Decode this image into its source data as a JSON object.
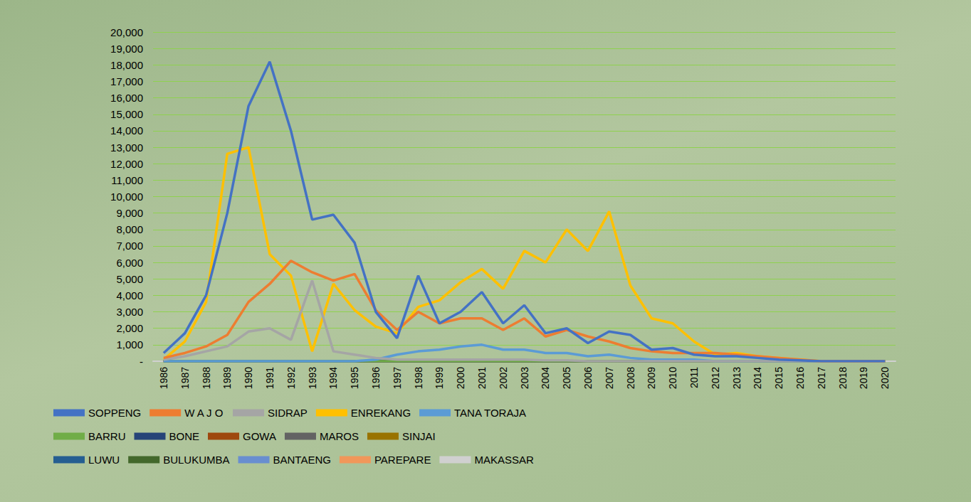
{
  "chart_data": {
    "type": "line",
    "marker": "none",
    "grid": true,
    "legend": "bottom",
    "categories": [
      "1986",
      "1987",
      "1988",
      "1989",
      "1990",
      "1991",
      "1992",
      "1993",
      "1994",
      "1995",
      "1996",
      "1997",
      "1998",
      "1999",
      "2000",
      "2001",
      "2002",
      "2003",
      "2004",
      "2005",
      "2006",
      "2007",
      "2008",
      "2009",
      "2010",
      "2011",
      "2012",
      "2013",
      "2014",
      "2015",
      "2016",
      "2017",
      "2018",
      "2019",
      "2020"
    ],
    "ylim": [
      0,
      20000
    ],
    "yticks": [
      {
        "value": 0,
        "label": "-"
      },
      {
        "value": 1000,
        "label": "1,000"
      },
      {
        "value": 2000,
        "label": "2,000"
      },
      {
        "value": 3000,
        "label": "3,000"
      },
      {
        "value": 4000,
        "label": "4,000"
      },
      {
        "value": 5000,
        "label": "5,000"
      },
      {
        "value": 6000,
        "label": "6,000"
      },
      {
        "value": 7000,
        "label": "7,000"
      },
      {
        "value": 8000,
        "label": "8,000"
      },
      {
        "value": 9000,
        "label": "9,000"
      },
      {
        "value": 10000,
        "label": "10,000"
      },
      {
        "value": 11000,
        "label": "11,000"
      },
      {
        "value": 12000,
        "label": "12,000"
      },
      {
        "value": 13000,
        "label": "13,000"
      },
      {
        "value": 14000,
        "label": "14,000"
      },
      {
        "value": 15000,
        "label": "15,000"
      },
      {
        "value": 16000,
        "label": "16,000"
      },
      {
        "value": 17000,
        "label": "17,000"
      },
      {
        "value": 18000,
        "label": "18,000"
      },
      {
        "value": 19000,
        "label": "19,000"
      },
      {
        "value": 20000,
        "label": "20,000"
      }
    ],
    "series": [
      {
        "name": "SOPPENG",
        "color": "#4472c4",
        "values": [
          500,
          1700,
          4000,
          9000,
          15500,
          18200,
          14000,
          8600,
          8900,
          7200,
          3000,
          1400,
          5200,
          2300,
          3000,
          4200,
          2300,
          3400,
          1700,
          2000,
          1100,
          1800,
          1600,
          700,
          800,
          400,
          300,
          300,
          200,
          100,
          50,
          0,
          0,
          0,
          0
        ]
      },
      {
        "name": "W A J O",
        "color": "#ed7d31",
        "values": [
          200,
          500,
          900,
          1600,
          3600,
          4700,
          6100,
          5400,
          4900,
          5300,
          3100,
          1900,
          3000,
          2300,
          2600,
          2600,
          1900,
          2600,
          1500,
          1900,
          1500,
          1200,
          800,
          600,
          500,
          500,
          500,
          400,
          300,
          200,
          100,
          0,
          0,
          0,
          0
        ]
      },
      {
        "name": "SIDRAP",
        "color": "#a5a5a5",
        "values": [
          100,
          300,
          600,
          900,
          1800,
          2000,
          1300,
          4900,
          600,
          400,
          200,
          100,
          100,
          100,
          100,
          100,
          100,
          100,
          50,
          50,
          0,
          0,
          0,
          0,
          0,
          0,
          0,
          0,
          0,
          0,
          0,
          0,
          0,
          0,
          0
        ]
      },
      {
        "name": "ENREKANG",
        "color": "#ffc000",
        "values": [
          100,
          1200,
          3600,
          12600,
          13000,
          6500,
          5200,
          600,
          4700,
          3100,
          2100,
          1700,
          3300,
          3700,
          4800,
          5600,
          4400,
          6700,
          6000,
          8000,
          6700,
          9100,
          4600,
          2600,
          2300,
          1200,
          400,
          500,
          300,
          200,
          100,
          0,
          0,
          0,
          0
        ]
      },
      {
        "name": "TANA TORAJA",
        "color": "#5b9bd5",
        "values": [
          0,
          0,
          0,
          0,
          0,
          0,
          0,
          0,
          0,
          0,
          100,
          400,
          600,
          700,
          900,
          1000,
          700,
          700,
          500,
          500,
          300,
          400,
          200,
          100,
          100,
          100,
          0,
          0,
          0,
          0,
          0,
          0,
          0,
          0,
          0
        ]
      },
      {
        "name": "BARRU",
        "color": "#70ad47",
        "values": [
          0,
          0,
          0,
          0,
          0,
          0,
          0,
          0,
          0,
          0,
          0,
          0,
          0,
          0,
          0,
          0,
          0,
          0,
          0,
          0,
          0,
          0,
          0,
          0,
          0,
          0,
          0,
          0,
          0,
          0,
          0,
          0,
          0,
          0,
          0
        ]
      },
      {
        "name": "BONE",
        "color": "#264478",
        "values": [
          0,
          0,
          0,
          0,
          0,
          0,
          0,
          0,
          0,
          0,
          0,
          0,
          0,
          0,
          0,
          0,
          0,
          0,
          0,
          0,
          0,
          0,
          0,
          0,
          0,
          0,
          0,
          0,
          0,
          0,
          0,
          0,
          0,
          0,
          0
        ]
      },
      {
        "name": "GOWA",
        "color": "#9e480e",
        "values": [
          0,
          0,
          0,
          0,
          0,
          0,
          0,
          0,
          0,
          0,
          0,
          0,
          0,
          0,
          0,
          0,
          0,
          0,
          0,
          0,
          0,
          0,
          0,
          0,
          0,
          0,
          0,
          0,
          0,
          0,
          0,
          0,
          0,
          0,
          0
        ]
      },
      {
        "name": "MAROS",
        "color": "#636363",
        "values": [
          0,
          0,
          0,
          0,
          0,
          0,
          0,
          0,
          0,
          0,
          0,
          0,
          0,
          0,
          0,
          0,
          0,
          0,
          0,
          0,
          0,
          0,
          0,
          0,
          0,
          0,
          0,
          0,
          0,
          0,
          0,
          0,
          0,
          0,
          0
        ]
      },
      {
        "name": "SINJAI",
        "color": "#997300",
        "values": [
          0,
          0,
          0,
          0,
          0,
          0,
          0,
          0,
          0,
          0,
          0,
          0,
          0,
          0,
          0,
          0,
          0,
          0,
          0,
          0,
          0,
          0,
          0,
          0,
          0,
          0,
          0,
          0,
          0,
          0,
          0,
          0,
          0,
          0,
          0
        ]
      },
      {
        "name": "LUWU",
        "color": "#255e91",
        "values": [
          0,
          0,
          0,
          0,
          0,
          0,
          0,
          0,
          0,
          0,
          0,
          0,
          0,
          0,
          0,
          0,
          0,
          0,
          0,
          0,
          0,
          0,
          0,
          0,
          0,
          0,
          0,
          0,
          0,
          0,
          0,
          0,
          0,
          0,
          0
        ]
      },
      {
        "name": "BULUKUMBA",
        "color": "#43682b",
        "values": [
          0,
          0,
          0,
          0,
          0,
          0,
          0,
          0,
          0,
          0,
          0,
          0,
          0,
          0,
          0,
          0,
          0,
          0,
          0,
          0,
          0,
          0,
          0,
          0,
          0,
          0,
          0,
          0,
          0,
          0,
          0,
          0,
          0,
          0,
          0
        ]
      },
      {
        "name": "BANTAENG",
        "color": "#698ed0",
        "values": [
          0,
          0,
          0,
          0,
          0,
          0,
          0,
          0,
          0,
          0,
          0,
          0,
          0,
          0,
          0,
          0,
          0,
          0,
          0,
          0,
          0,
          0,
          0,
          0,
          0,
          0,
          0,
          0,
          0,
          0,
          0,
          0,
          0,
          0,
          0
        ]
      },
      {
        "name": "PAREPARE",
        "color": "#f1975a",
        "values": [
          0,
          0,
          0,
          0,
          0,
          0,
          0,
          0,
          0,
          0,
          0,
          0,
          0,
          0,
          0,
          0,
          0,
          0,
          0,
          0,
          0,
          0,
          0,
          0,
          0,
          0,
          0,
          0,
          0,
          0,
          0,
          0,
          0,
          0,
          0
        ]
      },
      {
        "name": "MAKASSAR",
        "color": "#d0d0d0",
        "values": [
          0,
          0,
          0,
          0,
          0,
          0,
          0,
          0,
          0,
          0,
          0,
          0,
          0,
          0,
          0,
          0,
          0,
          0,
          0,
          0,
          0,
          0,
          0,
          0,
          0,
          0,
          0,
          0,
          0,
          0,
          0,
          0,
          0,
          0,
          0
        ]
      }
    ]
  }
}
